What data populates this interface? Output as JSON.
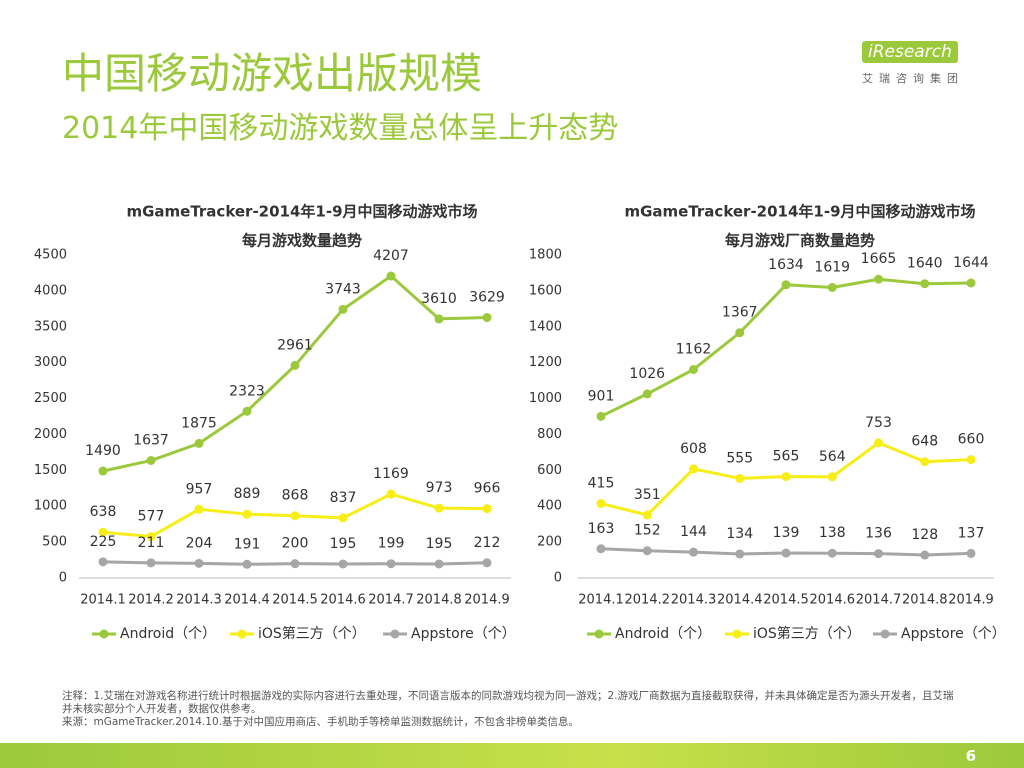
{
  "header": {
    "title": "中国移动游戏出版规模",
    "subtitle": "2014年中国移动游戏数量总体呈上升态势"
  },
  "logo": {
    "brand": "iResearch",
    "tagline": "艾瑞咨询集团"
  },
  "chart_data": [
    {
      "type": "line",
      "title": "mGameTracker-2014年1-9月中国移动游戏市场",
      "subtitle": "每月游戏数量趋势",
      "categories": [
        "2014.1",
        "2014.2",
        "2014.3",
        "2014.4",
        "2014.5",
        "2014.6",
        "2014.7",
        "2014.8",
        "2014.9"
      ],
      "ylim": [
        0,
        4500
      ],
      "yticks": [
        0,
        500,
        1000,
        1500,
        2000,
        2500,
        3000,
        3500,
        4000,
        4500
      ],
      "legend": "bottom",
      "series": [
        {
          "name": "Android（个）",
          "color": "#9bc93b",
          "values": [
            1490,
            1637,
            1875,
            2323,
            2961,
            3743,
            4207,
            3610,
            3629
          ]
        },
        {
          "name": "iOS第三方（个）",
          "color": "#f7ee16",
          "values": [
            638,
            577,
            957,
            889,
            868,
            837,
            1169,
            973,
            966
          ]
        },
        {
          "name": "Appstore（个）",
          "color": "#a6a6a6",
          "values": [
            225,
            211,
            204,
            191,
            200,
            195,
            199,
            195,
            212
          ]
        }
      ]
    },
    {
      "type": "line",
      "title": "mGameTracker-2014年1-9月中国移动游戏市场",
      "subtitle": "每月游戏厂商数量趋势",
      "categories": [
        "2014.1",
        "2014.2",
        "2014.3",
        "2014.4",
        "2014.5",
        "2014.6",
        "2014.7",
        "2014.8",
        "2014.9"
      ],
      "ylim": [
        0,
        1800
      ],
      "yticks": [
        0,
        200,
        400,
        600,
        800,
        1000,
        1200,
        1400,
        1600,
        1800
      ],
      "legend": "bottom",
      "series": [
        {
          "name": "Android（个）",
          "color": "#9bc93b",
          "values": [
            901,
            1026,
            1162,
            1367,
            1634,
            1619,
            1665,
            1640,
            1644
          ]
        },
        {
          "name": "iOS第三方（个）",
          "color": "#f7ee16",
          "values": [
            415,
            351,
            608,
            555,
            565,
            564,
            753,
            648,
            660
          ]
        },
        {
          "name": "Appstore（个）",
          "color": "#a6a6a6",
          "values": [
            163,
            152,
            144,
            134,
            139,
            138,
            136,
            128,
            137
          ]
        }
      ]
    }
  ],
  "notes": [
    "注释：1.艾瑞在对游戏名称进行统计时根据游戏的实际内容进行去重处理，不同语言版本的同款游戏均视为同一游戏；2.游戏厂商数据为直接截取获得，并未具体确定是否为源头开发者，且艾瑞并未核实部分个人开发者，数据仅供参考。",
    "来源：mGameTracker.2014.10.基于对中国应用商店、手机助手等榜单监测数据统计，不包含非榜单类信息。"
  ],
  "page_number": 6
}
